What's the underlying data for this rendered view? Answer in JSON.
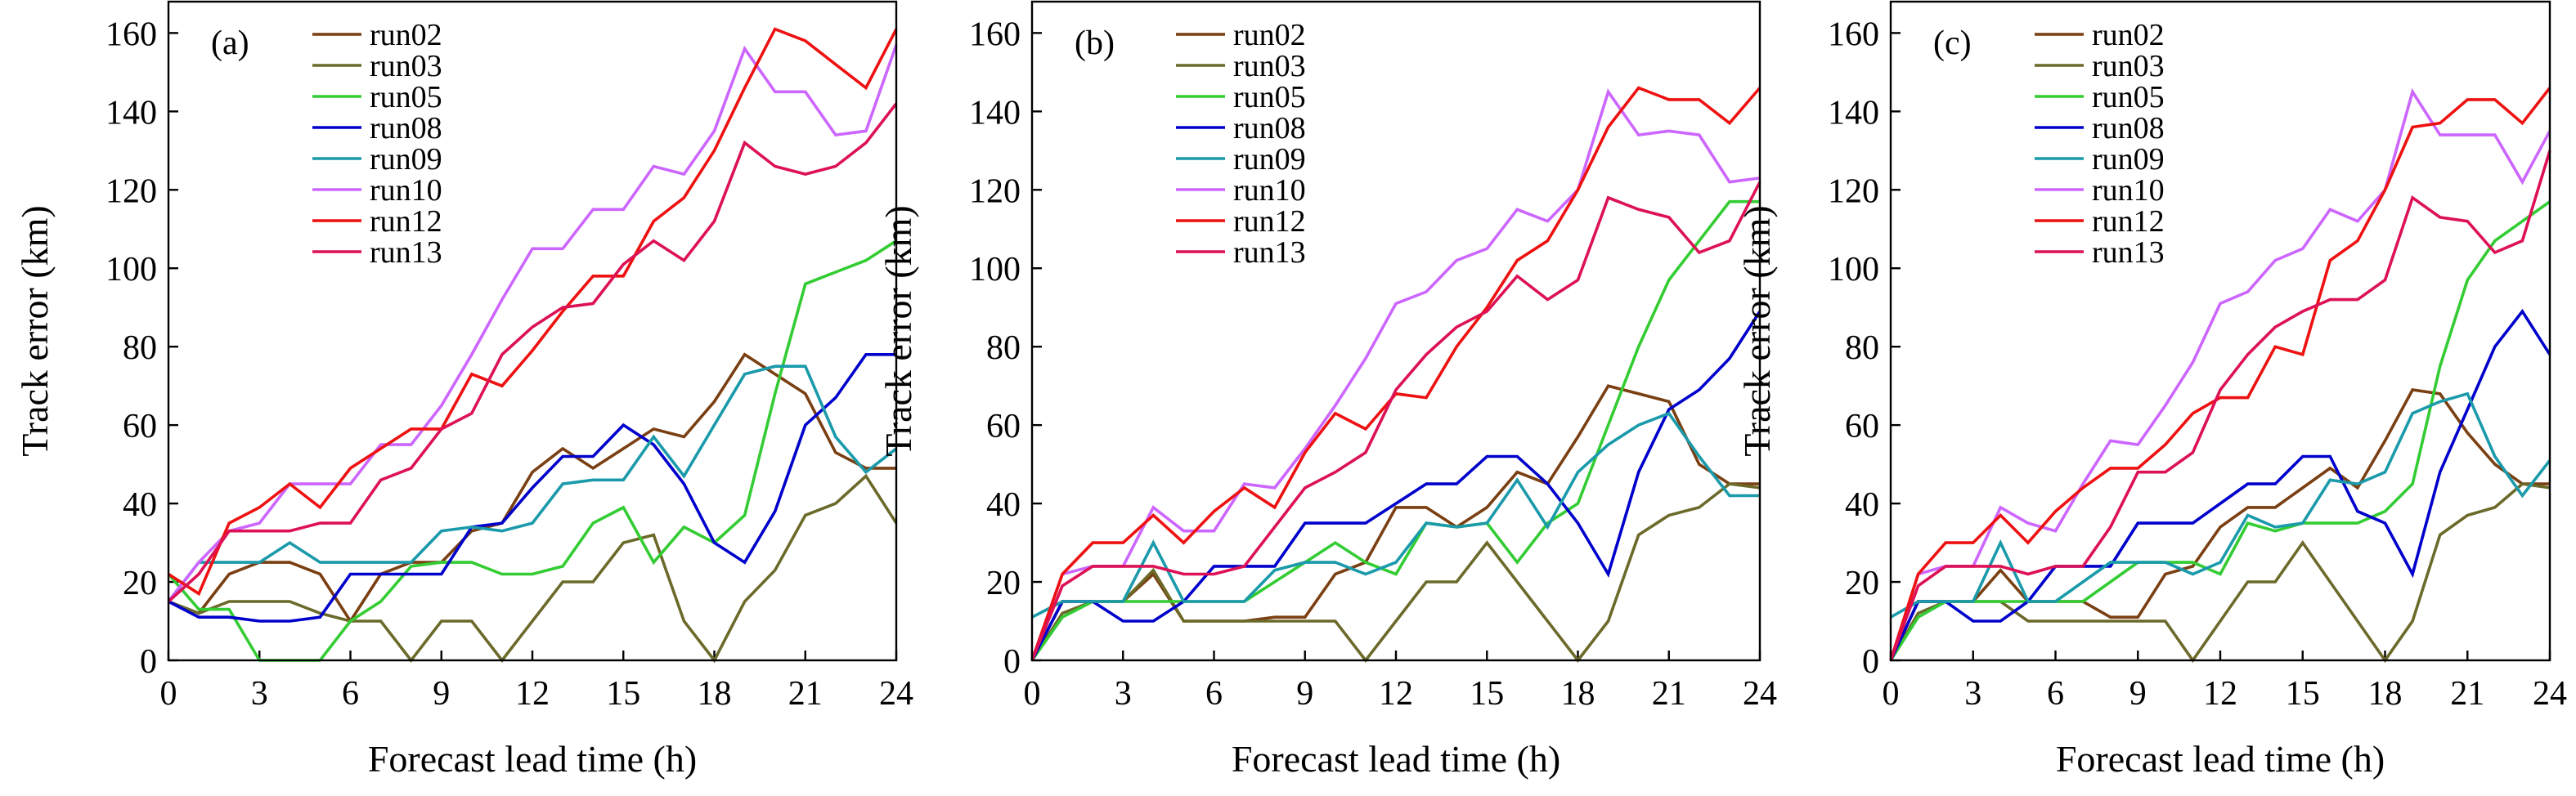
{
  "chart_data": [
    {
      "type": "line",
      "panel_label": "(a)",
      "xlabel": "Forecast lead time (h)",
      "ylabel": "Track error (km)",
      "xlim": [
        0,
        24
      ],
      "ylim": [
        0,
        168
      ],
      "xticks": [
        "0",
        "3",
        "6",
        "9",
        "12",
        "15",
        "18",
        "21",
        "24"
      ],
      "yticks": [
        "0",
        "20",
        "40",
        "60",
        "80",
        "100",
        "120",
        "140",
        "160"
      ],
      "legend_position": "top-left",
      "x": [
        0,
        1,
        2,
        3,
        4,
        5,
        6,
        7,
        8,
        9,
        10,
        11,
        12,
        13,
        14,
        15,
        16,
        17,
        18,
        19,
        20,
        21,
        22,
        23,
        24
      ],
      "series": [
        {
          "name": "run02",
          "color": "#7a3f12",
          "values": [
            15,
            12,
            22,
            25,
            25,
            22,
            10,
            22,
            25,
            25,
            33,
            35,
            48,
            54,
            49,
            54,
            59,
            57,
            66,
            78,
            73,
            68,
            53,
            49,
            49
          ]
        },
        {
          "name": "run03",
          "color": "#6b6a2a",
          "values": [
            15,
            12,
            15,
            15,
            15,
            12,
            10,
            10,
            0,
            10,
            10,
            0,
            10,
            20,
            20,
            30,
            32,
            10,
            0,
            15,
            23,
            37,
            40,
            47,
            35
          ]
        },
        {
          "name": "run05",
          "color": "#33cc33",
          "values": [
            22,
            13,
            13,
            0,
            0,
            0,
            10,
            15,
            24,
            25,
            25,
            22,
            22,
            24,
            35,
            39,
            25,
            34,
            30,
            37,
            68,
            96,
            99,
            102,
            107
          ]
        },
        {
          "name": "run08",
          "color": "#0000cc",
          "values": [
            15,
            11,
            11,
            10,
            10,
            11,
            22,
            22,
            22,
            22,
            34,
            35,
            44,
            52,
            52,
            60,
            55,
            45,
            30,
            25,
            38,
            60,
            67,
            78,
            78
          ]
        },
        {
          "name": "run09",
          "color": "#1a9aaa",
          "values": [
            15,
            25,
            25,
            25,
            30,
            25,
            25,
            25,
            25,
            33,
            34,
            33,
            35,
            45,
            46,
            46,
            57,
            47,
            60,
            73,
            75,
            75,
            57,
            48,
            54
          ]
        },
        {
          "name": "run10",
          "color": "#cc66ff",
          "values": [
            15,
            25,
            33,
            35,
            45,
            45,
            45,
            55,
            55,
            65,
            78,
            92,
            105,
            105,
            115,
            115,
            126,
            124,
            135,
            156,
            145,
            145,
            134,
            135,
            157
          ]
        },
        {
          "name": "run12",
          "color": "#ee1111",
          "values": [
            22,
            17,
            35,
            39,
            45,
            39,
            49,
            54,
            59,
            59,
            73,
            70,
            79,
            89,
            98,
            98,
            112,
            118,
            130,
            146,
            161,
            158,
            152,
            146,
            161
          ]
        },
        {
          "name": "run13",
          "color": "#dd1155",
          "values": [
            15,
            22,
            33,
            33,
            33,
            35,
            35,
            46,
            49,
            59,
            63,
            78,
            85,
            90,
            91,
            101,
            107,
            102,
            112,
            132,
            126,
            124,
            126,
            132,
            142
          ]
        }
      ]
    },
    {
      "type": "line",
      "panel_label": "(b)",
      "xlabel": "Forecast lead time (h)",
      "ylabel": "Track error (km)",
      "xlim": [
        0,
        24
      ],
      "ylim": [
        0,
        168
      ],
      "xticks": [
        "0",
        "3",
        "6",
        "9",
        "12",
        "15",
        "18",
        "21",
        "24"
      ],
      "yticks": [
        "0",
        "20",
        "40",
        "60",
        "80",
        "100",
        "120",
        "140",
        "160"
      ],
      "legend_position": "top-left",
      "x": [
        0,
        1,
        2,
        3,
        4,
        5,
        6,
        7,
        8,
        9,
        10,
        11,
        12,
        13,
        14,
        15,
        16,
        17,
        18,
        19,
        20,
        21,
        22,
        23,
        24
      ],
      "series": [
        {
          "name": "run02",
          "color": "#7a3f12",
          "values": [
            0,
            15,
            15,
            15,
            22,
            10,
            10,
            10,
            11,
            11,
            22,
            25,
            39,
            39,
            34,
            39,
            48,
            45,
            57,
            70,
            68,
            66,
            50,
            45,
            45
          ]
        },
        {
          "name": "run03",
          "color": "#6b6a2a",
          "values": [
            0,
            12,
            15,
            15,
            23,
            10,
            10,
            10,
            10,
            10,
            10,
            0,
            10,
            20,
            20,
            30,
            20,
            10,
            0,
            10,
            32,
            37,
            39,
            45,
            44
          ]
        },
        {
          "name": "run05",
          "color": "#33cc33",
          "values": [
            0,
            11,
            15,
            15,
            15,
            15,
            15,
            15,
            20,
            25,
            30,
            25,
            22,
            35,
            34,
            35,
            25,
            35,
            40,
            60,
            80,
            97,
            107,
            117,
            117
          ]
        },
        {
          "name": "run08",
          "color": "#0000cc",
          "values": [
            0,
            15,
            15,
            10,
            10,
            15,
            24,
            24,
            24,
            35,
            35,
            35,
            40,
            45,
            45,
            52,
            52,
            45,
            35,
            22,
            48,
            64,
            69,
            77,
            89
          ]
        },
        {
          "name": "run09",
          "color": "#1a9aaa",
          "values": [
            11,
            15,
            15,
            15,
            30,
            15,
            15,
            15,
            23,
            25,
            25,
            22,
            25,
            35,
            34,
            35,
            46,
            34,
            48,
            55,
            60,
            63,
            52,
            42,
            42
          ]
        },
        {
          "name": "run10",
          "color": "#cc66ff",
          "values": [
            0,
            22,
            24,
            24,
            39,
            33,
            33,
            45,
            44,
            54,
            65,
            77,
            91,
            94,
            102,
            105,
            115,
            112,
            120,
            145,
            134,
            135,
            134,
            122,
            123
          ]
        },
        {
          "name": "run12",
          "color": "#ee1111",
          "values": [
            0,
            22,
            30,
            30,
            37,
            30,
            38,
            44,
            39,
            53,
            63,
            59,
            68,
            67,
            80,
            90,
            102,
            107,
            120,
            136,
            146,
            143,
            143,
            137,
            146
          ]
        },
        {
          "name": "run13",
          "color": "#dd1155",
          "values": [
            0,
            19,
            24,
            24,
            24,
            22,
            22,
            24,
            34,
            44,
            48,
            53,
            69,
            78,
            85,
            89,
            98,
            92,
            97,
            118,
            115,
            113,
            104,
            107,
            122
          ]
        }
      ]
    },
    {
      "type": "line",
      "panel_label": "(c)",
      "xlabel": "Forecast lead time (h)",
      "ylabel": "Track error (km)",
      "xlim": [
        0,
        24
      ],
      "ylim": [
        0,
        168
      ],
      "xticks": [
        "0",
        "3",
        "6",
        "9",
        "12",
        "15",
        "18",
        "21",
        "24"
      ],
      "yticks": [
        "0",
        "20",
        "40",
        "60",
        "80",
        "100",
        "120",
        "140",
        "160"
      ],
      "legend_position": "top-left",
      "x": [
        0,
        1,
        2,
        3,
        4,
        5,
        6,
        7,
        8,
        9,
        10,
        11,
        12,
        13,
        14,
        15,
        16,
        17,
        18,
        19,
        20,
        21,
        22,
        23,
        24
      ],
      "series": [
        {
          "name": "run02",
          "color": "#7a3f12",
          "values": [
            0,
            15,
            15,
            15,
            23,
            15,
            15,
            15,
            11,
            11,
            22,
            24,
            34,
            39,
            39,
            44,
            49,
            44,
            56,
            69,
            68,
            58,
            50,
            45,
            45
          ]
        },
        {
          "name": "run03",
          "color": "#6b6a2a",
          "values": [
            0,
            12,
            15,
            15,
            15,
            10,
            10,
            10,
            10,
            10,
            10,
            0,
            10,
            20,
            20,
            30,
            20,
            10,
            0,
            10,
            32,
            37,
            39,
            45,
            44
          ]
        },
        {
          "name": "run05",
          "color": "#33cc33",
          "values": [
            0,
            11,
            15,
            15,
            15,
            15,
            15,
            15,
            20,
            25,
            25,
            25,
            22,
            35,
            33,
            35,
            35,
            35,
            38,
            45,
            75,
            97,
            107,
            112,
            117
          ]
        },
        {
          "name": "run08",
          "color": "#0000cc",
          "values": [
            0,
            15,
            15,
            10,
            10,
            15,
            24,
            24,
            24,
            35,
            35,
            35,
            40,
            45,
            45,
            52,
            52,
            38,
            35,
            22,
            48,
            64,
            80,
            89,
            78
          ]
        },
        {
          "name": "run09",
          "color": "#1a9aaa",
          "values": [
            11,
            15,
            15,
            15,
            30,
            15,
            15,
            20,
            25,
            25,
            25,
            22,
            25,
            37,
            34,
            35,
            46,
            45,
            48,
            63,
            66,
            68,
            52,
            42,
            51
          ]
        },
        {
          "name": "run10",
          "color": "#cc66ff",
          "values": [
            0,
            22,
            24,
            24,
            39,
            35,
            33,
            45,
            56,
            55,
            65,
            76,
            91,
            94,
            102,
            105,
            115,
            112,
            120,
            145,
            134,
            134,
            134,
            122,
            135
          ]
        },
        {
          "name": "run12",
          "color": "#ee1111",
          "values": [
            0,
            22,
            30,
            30,
            37,
            30,
            38,
            44,
            49,
            49,
            55,
            63,
            67,
            67,
            80,
            78,
            102,
            107,
            120,
            136,
            137,
            143,
            143,
            137,
            146
          ]
        },
        {
          "name": "run13",
          "color": "#dd1155",
          "values": [
            0,
            19,
            24,
            24,
            24,
            22,
            24,
            24,
            34,
            48,
            48,
            53,
            69,
            78,
            85,
            89,
            92,
            92,
            97,
            118,
            113,
            112,
            104,
            107,
            130
          ]
        }
      ]
    }
  ]
}
